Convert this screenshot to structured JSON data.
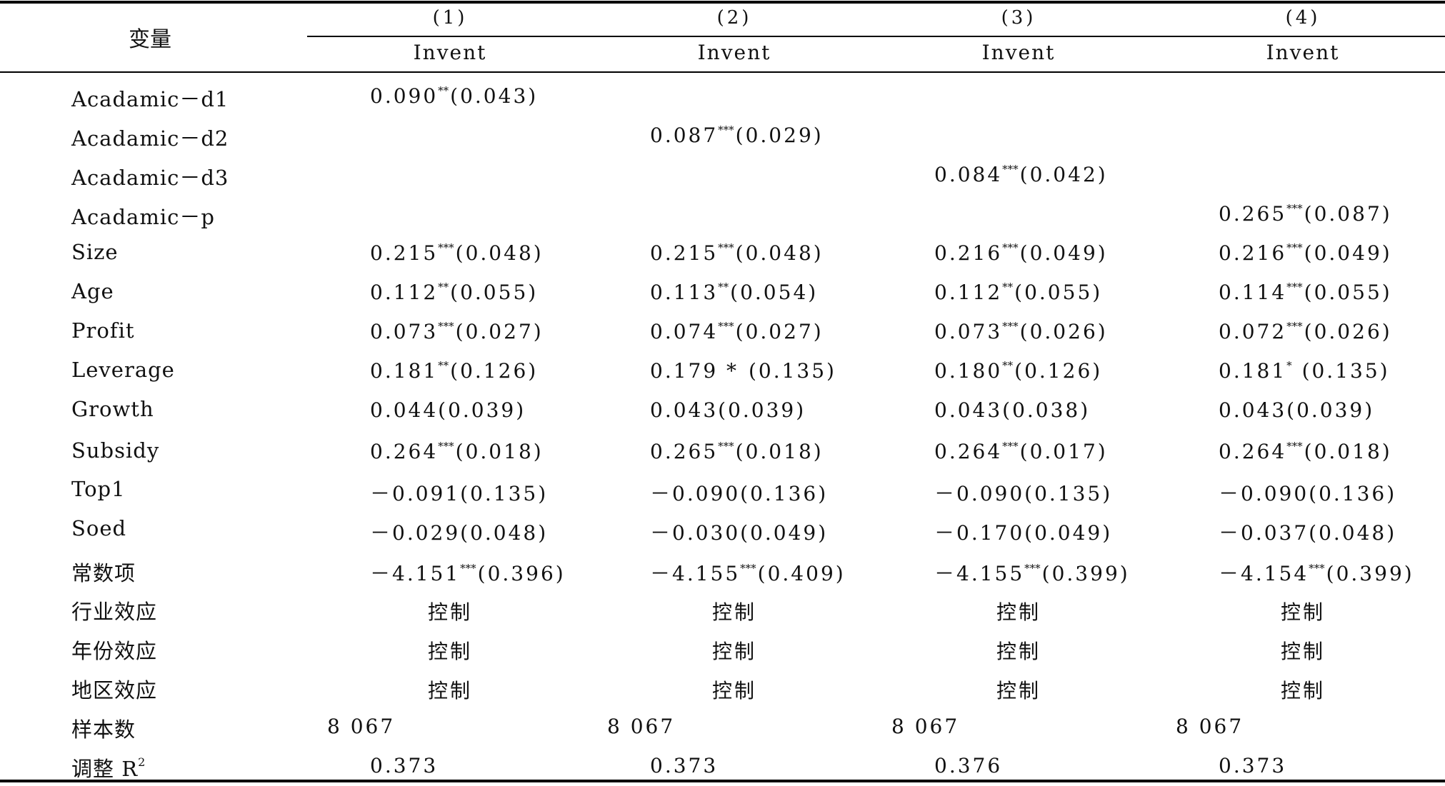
{
  "header": {
    "variable_label": "变量",
    "columns": [
      {
        "num": "(1)",
        "dv": "Invent"
      },
      {
        "num": "(2)",
        "dv": "Invent"
      },
      {
        "num": "(3)",
        "dv": "Invent"
      },
      {
        "num": "(4)",
        "dv": "Invent"
      }
    ]
  },
  "rows": [
    {
      "label": "Acadamic－d1",
      "cells": [
        {
          "c": "0.090",
          "s": "**",
          "se": "(0.043)"
        },
        null,
        null,
        null
      ]
    },
    {
      "label": "Acadamic－d2",
      "cells": [
        null,
        {
          "c": "0.087",
          "s": "***",
          "se": "(0.029)"
        },
        null,
        null
      ]
    },
    {
      "label": "Acadamic－d3",
      "cells": [
        null,
        null,
        {
          "c": "0.084",
          "s": "***",
          "se": "(0.042)"
        },
        null
      ]
    },
    {
      "label": "Acadamic－p",
      "cells": [
        null,
        null,
        null,
        {
          "c": "0.265",
          "s": "***",
          "se": "(0.087)"
        }
      ]
    },
    {
      "label": "Size",
      "cells": [
        {
          "c": "0.215",
          "s": "***",
          "se": "(0.048)"
        },
        {
          "c": "0.215",
          "s": "***",
          "se": "(0.048)"
        },
        {
          "c": "0.216",
          "s": "***",
          "se": "(0.049)"
        },
        {
          "c": "0.216",
          "s": "***",
          "se": "(0.049)"
        }
      ]
    },
    {
      "label": "Age",
      "cells": [
        {
          "c": "0.112",
          "s": "**",
          "se": "(0.055)"
        },
        {
          "c": "0.113",
          "s": "**",
          "se": "(0.054)"
        },
        {
          "c": "0.112",
          "s": "**",
          "se": "(0.055)"
        },
        {
          "c": "0.114",
          "s": "***",
          "se": "(0.055)"
        }
      ]
    },
    {
      "label": "Profit",
      "cells": [
        {
          "c": "0.073",
          "s": "***",
          "se": "(0.027)"
        },
        {
          "c": "0.074",
          "s": "***",
          "se": "(0.027)"
        },
        {
          "c": "0.073",
          "s": "***",
          "se": "(0.026)"
        },
        {
          "c": "0.072",
          "s": "***",
          "se": "(0.026)"
        }
      ]
    },
    {
      "label": "Leverage",
      "cells": [
        {
          "c": "0.181",
          "s": "**",
          "se": "(0.126)"
        },
        {
          "c": "0.179 * ",
          "s": "",
          "se": "(0.135)"
        },
        {
          "c": "0.180",
          "s": "**",
          "se": "(0.126)"
        },
        {
          "c": "0.181",
          "s": "*",
          "se": " (0.135)"
        }
      ]
    },
    {
      "label": "Growth",
      "cells": [
        {
          "c": "0.044(0.039)",
          "s": "",
          "se": ""
        },
        {
          "c": "0.043(0.039)",
          "s": "",
          "se": ""
        },
        {
          "c": "0.043(0.038)",
          "s": "",
          "se": ""
        },
        {
          "c": "0.043(0.039)",
          "s": "",
          "se": ""
        }
      ]
    },
    {
      "label": "Subsidy",
      "cells": [
        {
          "c": "0.264",
          "s": "***",
          "se": "(0.018)"
        },
        {
          "c": "0.265",
          "s": "***",
          "se": "(0.018)"
        },
        {
          "c": "0.264",
          "s": "***",
          "se": "(0.017)"
        },
        {
          "c": "0.264",
          "s": "***",
          "se": "(0.018)"
        }
      ]
    },
    {
      "label": "Top1",
      "cells": [
        {
          "c": "－0.091(0.135)",
          "s": "",
          "se": ""
        },
        {
          "c": "－0.090(0.136)",
          "s": "",
          "se": ""
        },
        {
          "c": "－0.090(0.135)",
          "s": "",
          "se": ""
        },
        {
          "c": "－0.090(0.136)",
          "s": "",
          "se": ""
        }
      ]
    },
    {
      "label": "Soed",
      "cells": [
        {
          "c": "－0.029(0.048)",
          "s": "",
          "se": ""
        },
        {
          "c": "－0.030(0.049)",
          "s": "",
          "se": ""
        },
        {
          "c": "－0.170(0.049)",
          "s": "",
          "se": ""
        },
        {
          "c": "－0.037(0.048)",
          "s": "",
          "se": ""
        }
      ]
    },
    {
      "label": "常数项",
      "cells": [
        {
          "c": "－4.151",
          "s": "***",
          "se": "(0.396)"
        },
        {
          "c": "－4.155",
          "s": "***",
          "se": "(0.409)"
        },
        {
          "c": "－4.155",
          "s": "***",
          "se": "(0.399)"
        },
        {
          "c": "－4.154",
          "s": "***",
          "se": "(0.399)"
        }
      ]
    },
    {
      "label": "行业效应",
      "center": true,
      "cells": [
        {
          "c": "控制",
          "s": "",
          "se": ""
        },
        {
          "c": "控制",
          "s": "",
          "se": ""
        },
        {
          "c": "控制",
          "s": "",
          "se": ""
        },
        {
          "c": "控制",
          "s": "",
          "se": ""
        }
      ]
    },
    {
      "label": "年份效应",
      "center": true,
      "cells": [
        {
          "c": "控制",
          "s": "",
          "se": ""
        },
        {
          "c": "控制",
          "s": "",
          "se": ""
        },
        {
          "c": "控制",
          "s": "",
          "se": ""
        },
        {
          "c": "控制",
          "s": "",
          "se": ""
        }
      ]
    },
    {
      "label": "地区效应",
      "center": true,
      "cells": [
        {
          "c": "控制",
          "s": "",
          "se": ""
        },
        {
          "c": "控制",
          "s": "",
          "se": ""
        },
        {
          "c": "控制",
          "s": "",
          "se": ""
        },
        {
          "c": "控制",
          "s": "",
          "se": ""
        }
      ]
    },
    {
      "label": "样本数",
      "nobs": true,
      "cells": [
        {
          "c": "8 067",
          "s": "",
          "se": ""
        },
        {
          "c": "8 067",
          "s": "",
          "se": ""
        },
        {
          "c": "8 067",
          "s": "",
          "se": ""
        },
        {
          "c": "8 067",
          "s": "",
          "se": ""
        }
      ]
    },
    {
      "label": "调整 R",
      "label_sup": "2",
      "cells": [
        {
          "c": "0.373",
          "s": "",
          "se": ""
        },
        {
          "c": "0.373",
          "s": "",
          "se": ""
        },
        {
          "c": "0.376",
          "s": "",
          "se": ""
        },
        {
          "c": "0.373",
          "s": "",
          "se": ""
        }
      ]
    }
  ]
}
